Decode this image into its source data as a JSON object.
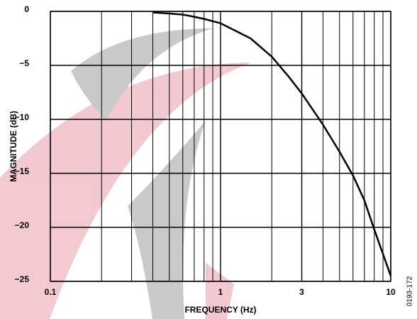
{
  "chart_data": {
    "type": "line",
    "log_x": true,
    "xlabel": "FREQUENCY (Hz)",
    "ylabel": "MAGNITUDE (dB)",
    "figure_id": "0193-172",
    "x": [
      0.4,
      0.5,
      0.6,
      0.7,
      0.8,
      1,
      1.5,
      2,
      2.5,
      3,
      4,
      5,
      6,
      7,
      8,
      10
    ],
    "series": [
      {
        "color": "#000000",
        "values": [
          -0.1,
          -0.2,
          -0.3,
          -0.5,
          -0.7,
          -1.1,
          -2.5,
          -4.2,
          -6,
          -7.6,
          -10.5,
          -13,
          -15.2,
          -17.5,
          -20.2,
          -24.5
        ]
      }
    ],
    "xlim": [
      0.1,
      10
    ],
    "ylim": [
      -25,
      0
    ],
    "xticks": [
      0.1,
      1,
      3,
      10
    ],
    "x_minor_grid": [
      0.2,
      0.3,
      0.4,
      0.5,
      0.6,
      0.7,
      0.8,
      0.9,
      2,
      3,
      4,
      5,
      6,
      7,
      8,
      9
    ],
    "yticks": [
      0,
      {
        "value": -5,
        "label": "−5"
      },
      {
        "value": -10,
        "label": "−10"
      },
      {
        "value": -15,
        "label": "−15"
      },
      {
        "value": -20,
        "label": "−20"
      },
      {
        "value": -25,
        "label": "−25"
      }
    ],
    "grid": true
  }
}
